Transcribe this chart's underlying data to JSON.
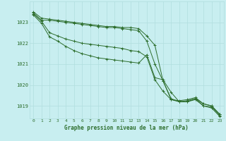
{
  "title": "Graphe pression niveau de la mer (hPa)",
  "background_color": "#c8eef0",
  "grid_color": "#b0dede",
  "line_color": "#2d6e2d",
  "x_labels": [
    "0",
    "1",
    "2",
    "3",
    "4",
    "5",
    "6",
    "7",
    "8",
    "9",
    "10",
    "11",
    "12",
    "13",
    "14",
    "15",
    "16",
    "17",
    "18",
    "19",
    "20",
    "21",
    "22",
    "23"
  ],
  "ylim": [
    1018.4,
    1024.0
  ],
  "yticks": [
    1019,
    1020,
    1021,
    1022,
    1023
  ],
  "series": [
    [
      1023.5,
      1023.2,
      1023.15,
      1023.1,
      1023.05,
      1023.0,
      1022.95,
      1022.9,
      1022.85,
      1022.8,
      1022.8,
      1022.75,
      1022.75,
      1022.7,
      1022.35,
      1021.9,
      1020.2,
      1019.3,
      1019.25,
      1019.3,
      1019.4,
      1019.1,
      1019.0,
      1018.6
    ],
    [
      1023.45,
      1023.1,
      1023.1,
      1023.05,
      1023.0,
      1022.95,
      1022.9,
      1022.85,
      1022.8,
      1022.75,
      1022.75,
      1022.7,
      1022.65,
      1022.6,
      1022.1,
      1021.0,
      1020.2,
      1019.35,
      1019.2,
      1019.25,
      1019.35,
      1019.1,
      1019.0,
      1018.6
    ],
    [
      1023.4,
      1023.05,
      1022.5,
      1022.35,
      1022.2,
      1022.1,
      1022.0,
      1021.95,
      1021.9,
      1021.85,
      1021.8,
      1021.75,
      1021.65,
      1021.6,
      1021.35,
      1020.25,
      1019.7,
      1019.3,
      1019.2,
      1019.2,
      1019.35,
      1019.0,
      1018.95,
      1018.55
    ],
    [
      1023.35,
      1022.95,
      1022.3,
      1022.1,
      1021.85,
      1021.65,
      1021.5,
      1021.4,
      1021.3,
      1021.25,
      1021.2,
      1021.15,
      1021.1,
      1021.05,
      1021.45,
      1020.35,
      1020.25,
      1019.65,
      1019.2,
      1019.2,
      1019.3,
      1019.0,
      1018.9,
      1018.5
    ]
  ]
}
